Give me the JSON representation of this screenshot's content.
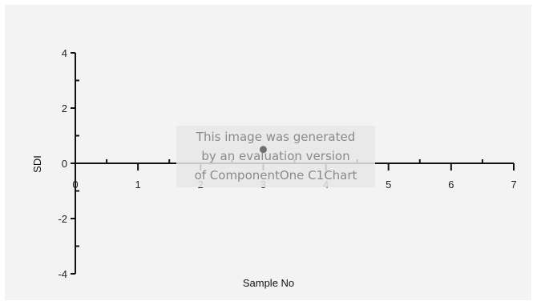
{
  "chart_data": {
    "type": "scatter",
    "title": "",
    "xlabel": "Sample No",
    "ylabel": "SDI",
    "xlim": [
      0,
      7
    ],
    "ylim": [
      -4,
      4
    ],
    "x_ticks": [
      0,
      1,
      2,
      3,
      4,
      5,
      6,
      7
    ],
    "y_ticks": [
      -4,
      -2,
      0,
      2,
      4
    ],
    "grid": false,
    "legend": "none",
    "series": [
      {
        "x": [
          3
        ],
        "y": [
          0.5
        ],
        "color": "#707070"
      }
    ],
    "watermark": [
      "This image was generated",
      "by an evaluation version",
      "of ComponentOne C1Chart"
    ],
    "colors": {
      "background": "#f3f3f3",
      "axis": "#111111",
      "watermark_bg": "#e6e6e6"
    }
  }
}
